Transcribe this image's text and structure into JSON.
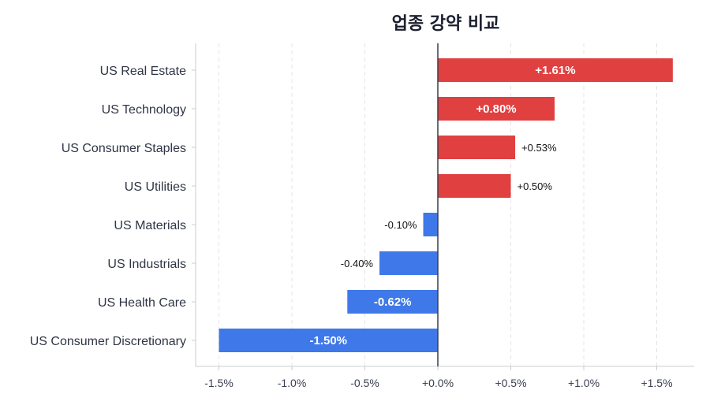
{
  "chart_data": {
    "type": "bar",
    "orientation": "horizontal",
    "title": "업종 강약 비교",
    "categories": [
      "US Real Estate",
      "US Technology",
      "US Consumer Staples",
      "US Utilities",
      "US Materials",
      "US Industrials",
      "US Health Care",
      "US Consumer Discretionary"
    ],
    "values": [
      1.61,
      0.8,
      0.53,
      0.5,
      -0.1,
      -0.4,
      -0.62,
      -1.5
    ],
    "labels": [
      "+1.61%",
      "+0.80%",
      "+0.53%",
      "+0.50%",
      "-0.10%",
      "-0.40%",
      "-0.62%",
      "-1.50%"
    ],
    "xlim": [
      -1.65,
      1.76
    ],
    "xticks": [
      -1.5,
      -1.0,
      -0.5,
      0,
      0.5,
      1.0,
      1.5
    ],
    "xtick_labels": [
      "-1.5%",
      "-1.0%",
      "-0.5%",
      "+0.0%",
      "+0.5%",
      "+1.0%",
      "+1.5%"
    ],
    "xlabel": "",
    "ylabel": "",
    "grid": "x dashed",
    "colors": {
      "positive": "#e04040",
      "negative": "#3f78e8"
    }
  }
}
